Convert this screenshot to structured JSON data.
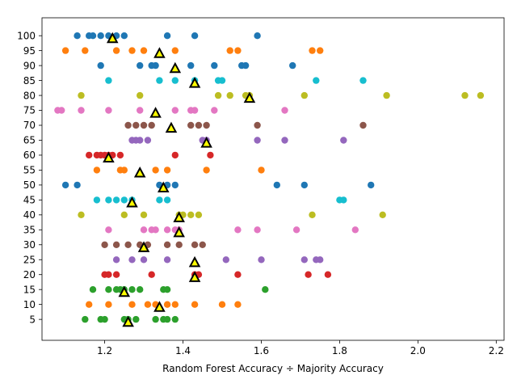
{
  "chart_data": {
    "type": "scatter",
    "title": "",
    "xlabel": "Random Forest Accuracy ÷ Majority Accuracy",
    "ylabel": "",
    "xlim": [
      1.04,
      2.22
    ],
    "ylim": [
      -2,
      106
    ],
    "x_ticks": [
      "1.2",
      "1.4",
      "1.6",
      "1.8",
      "2.0",
      "2.2"
    ],
    "y_ticks": [
      "5",
      "10",
      "15",
      "20",
      "25",
      "30",
      "35",
      "40",
      "45",
      "50",
      "55",
      "60",
      "65",
      "70",
      "75",
      "80",
      "85",
      "90",
      "95",
      "100"
    ],
    "grid": false,
    "legend": "none",
    "series": [
      {
        "color": "#1f77b4",
        "points": [
          [
            1.13,
            100
          ],
          [
            1.16,
            100
          ],
          [
            1.17,
            100
          ],
          [
            1.19,
            100
          ],
          [
            1.21,
            100
          ],
          [
            1.23,
            100
          ],
          [
            1.25,
            100
          ],
          [
            1.36,
            100
          ],
          [
            1.43,
            100
          ],
          [
            1.59,
            100
          ],
          [
            1.19,
            90
          ],
          [
            1.29,
            90
          ],
          [
            1.32,
            90
          ],
          [
            1.33,
            90
          ],
          [
            1.42,
            90
          ],
          [
            1.48,
            90
          ],
          [
            1.55,
            90
          ],
          [
            1.56,
            90
          ],
          [
            1.68,
            90
          ],
          [
            1.1,
            50
          ],
          [
            1.13,
            50
          ],
          [
            1.34,
            50
          ],
          [
            1.36,
            50
          ],
          [
            1.38,
            50
          ],
          [
            1.64,
            50
          ],
          [
            1.71,
            50
          ],
          [
            1.88,
            50
          ]
        ]
      },
      {
        "color": "#ff7f0e",
        "points": [
          [
            1.1,
            95
          ],
          [
            1.15,
            95
          ],
          [
            1.23,
            95
          ],
          [
            1.27,
            95
          ],
          [
            1.3,
            95
          ],
          [
            1.38,
            95
          ],
          [
            1.52,
            95
          ],
          [
            1.54,
            95
          ],
          [
            1.73,
            95
          ],
          [
            1.75,
            95
          ],
          [
            1.18,
            55
          ],
          [
            1.24,
            55
          ],
          [
            1.25,
            55
          ],
          [
            1.33,
            55
          ],
          [
            1.36,
            55
          ],
          [
            1.46,
            55
          ],
          [
            1.6,
            55
          ],
          [
            1.16,
            10
          ],
          [
            1.21,
            10
          ],
          [
            1.27,
            10
          ],
          [
            1.31,
            10
          ],
          [
            1.33,
            10
          ],
          [
            1.36,
            10
          ],
          [
            1.38,
            10
          ],
          [
            1.43,
            10
          ],
          [
            1.5,
            10
          ],
          [
            1.54,
            10
          ]
        ]
      },
      {
        "color": "#2ca02c",
        "points": [
          [
            1.17,
            15
          ],
          [
            1.21,
            15
          ],
          [
            1.23,
            15
          ],
          [
            1.24,
            15
          ],
          [
            1.25,
            15
          ],
          [
            1.27,
            15
          ],
          [
            1.29,
            15
          ],
          [
            1.35,
            15
          ],
          [
            1.36,
            15
          ],
          [
            1.61,
            15
          ],
          [
            1.15,
            5
          ],
          [
            1.19,
            5
          ],
          [
            1.2,
            5
          ],
          [
            1.25,
            5
          ],
          [
            1.26,
            5
          ],
          [
            1.28,
            5
          ],
          [
            1.33,
            5
          ],
          [
            1.35,
            5
          ],
          [
            1.36,
            5
          ],
          [
            1.38,
            5
          ]
        ]
      },
      {
        "color": "#d62728",
        "points": [
          [
            1.16,
            60
          ],
          [
            1.18,
            60
          ],
          [
            1.19,
            60
          ],
          [
            1.2,
            60
          ],
          [
            1.21,
            60
          ],
          [
            1.22,
            60
          ],
          [
            1.24,
            60
          ],
          [
            1.38,
            60
          ],
          [
            1.47,
            60
          ],
          [
            1.2,
            20
          ],
          [
            1.21,
            20
          ],
          [
            1.23,
            20
          ],
          [
            1.32,
            20
          ],
          [
            1.43,
            20
          ],
          [
            1.44,
            20
          ],
          [
            1.54,
            20
          ],
          [
            1.72,
            20
          ],
          [
            1.77,
            20
          ]
        ]
      },
      {
        "color": "#9467bd",
        "points": [
          [
            1.27,
            65
          ],
          [
            1.28,
            65
          ],
          [
            1.29,
            65
          ],
          [
            1.31,
            65
          ],
          [
            1.45,
            65
          ],
          [
            1.46,
            65
          ],
          [
            1.59,
            65
          ],
          [
            1.66,
            65
          ],
          [
            1.81,
            65
          ],
          [
            1.23,
            25
          ],
          [
            1.27,
            25
          ],
          [
            1.3,
            25
          ],
          [
            1.36,
            25
          ],
          [
            1.51,
            25
          ],
          [
            1.6,
            25
          ],
          [
            1.71,
            25
          ],
          [
            1.74,
            25
          ],
          [
            1.75,
            25
          ]
        ]
      },
      {
        "color": "#8c564b",
        "points": [
          [
            1.26,
            70
          ],
          [
            1.28,
            70
          ],
          [
            1.3,
            70
          ],
          [
            1.32,
            70
          ],
          [
            1.42,
            70
          ],
          [
            1.44,
            70
          ],
          [
            1.46,
            70
          ],
          [
            1.59,
            70
          ],
          [
            1.86,
            70
          ],
          [
            1.2,
            30
          ],
          [
            1.23,
            30
          ],
          [
            1.26,
            30
          ],
          [
            1.29,
            30
          ],
          [
            1.31,
            30
          ],
          [
            1.36,
            30
          ],
          [
            1.39,
            30
          ],
          [
            1.43,
            30
          ],
          [
            1.45,
            30
          ]
        ]
      },
      {
        "color": "#e377c2",
        "points": [
          [
            1.08,
            75
          ],
          [
            1.09,
            75
          ],
          [
            1.14,
            75
          ],
          [
            1.21,
            75
          ],
          [
            1.29,
            75
          ],
          [
            1.38,
            75
          ],
          [
            1.42,
            75
          ],
          [
            1.43,
            75
          ],
          [
            1.48,
            75
          ],
          [
            1.66,
            75
          ],
          [
            1.21,
            35
          ],
          [
            1.3,
            35
          ],
          [
            1.32,
            35
          ],
          [
            1.33,
            35
          ],
          [
            1.36,
            35
          ],
          [
            1.38,
            35
          ],
          [
            1.39,
            35
          ],
          [
            1.54,
            35
          ],
          [
            1.59,
            35
          ],
          [
            1.69,
            35
          ],
          [
            1.84,
            35
          ]
        ]
      },
      {
        "color": "#bcbd22",
        "points": [
          [
            1.14,
            80
          ],
          [
            1.29,
            80
          ],
          [
            1.49,
            80
          ],
          [
            1.52,
            80
          ],
          [
            1.56,
            80
          ],
          [
            1.57,
            80
          ],
          [
            1.71,
            80
          ],
          [
            1.92,
            80
          ],
          [
            2.12,
            80
          ],
          [
            2.16,
            80
          ],
          [
            1.14,
            40
          ],
          [
            1.25,
            40
          ],
          [
            1.3,
            40
          ],
          [
            1.39,
            40
          ],
          [
            1.4,
            40
          ],
          [
            1.42,
            40
          ],
          [
            1.44,
            40
          ],
          [
            1.73,
            40
          ],
          [
            1.91,
            40
          ]
        ]
      },
      {
        "color": "#17becf",
        "points": [
          [
            1.21,
            85
          ],
          [
            1.34,
            85
          ],
          [
            1.38,
            85
          ],
          [
            1.43,
            85
          ],
          [
            1.49,
            85
          ],
          [
            1.5,
            85
          ],
          [
            1.74,
            85
          ],
          [
            1.86,
            85
          ],
          [
            1.18,
            45
          ],
          [
            1.21,
            45
          ],
          [
            1.23,
            45
          ],
          [
            1.25,
            45
          ],
          [
            1.27,
            45
          ],
          [
            1.34,
            45
          ],
          [
            1.36,
            45
          ],
          [
            1.8,
            45
          ],
          [
            1.81,
            45
          ]
        ]
      }
    ],
    "markers": {
      "shape": "triangle",
      "fill": "#ffff00",
      "stroke": "#000000",
      "points": [
        [
          1.22,
          99
        ],
        [
          1.34,
          94
        ],
        [
          1.38,
          89
        ],
        [
          1.43,
          84
        ],
        [
          1.57,
          79
        ],
        [
          1.33,
          74
        ],
        [
          1.37,
          69
        ],
        [
          1.46,
          64
        ],
        [
          1.21,
          59
        ],
        [
          1.29,
          54
        ],
        [
          1.35,
          49
        ],
        [
          1.27,
          44
        ],
        [
          1.39,
          39
        ],
        [
          1.39,
          34
        ],
        [
          1.3,
          29
        ],
        [
          1.43,
          24
        ],
        [
          1.43,
          19
        ],
        [
          1.25,
          14
        ],
        [
          1.34,
          9
        ],
        [
          1.26,
          4
        ]
      ]
    }
  }
}
